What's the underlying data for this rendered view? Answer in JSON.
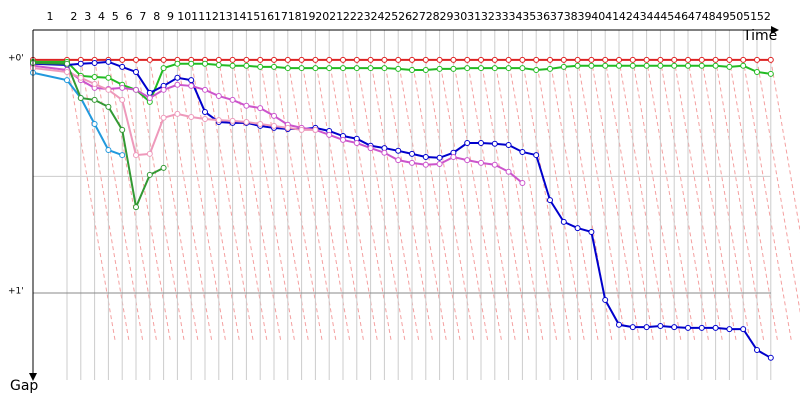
{
  "chart_data": {
    "type": "lap-gap",
    "x_label": "Time",
    "y_label": "Gap",
    "xticks": [
      1,
      2,
      3,
      4,
      5,
      6,
      7,
      8,
      9,
      10,
      11,
      12,
      13,
      14,
      15,
      16,
      17,
      18,
      19,
      20,
      21,
      22,
      23,
      24,
      25,
      26,
      27,
      28,
      29,
      30,
      31,
      32,
      33,
      34,
      35,
      36,
      37,
      38,
      39,
      40,
      41,
      42,
      43,
      44,
      45,
      46,
      47,
      48,
      49,
      50,
      51,
      52
    ],
    "ylim": [
      -7.7,
      83.7
    ],
    "yticks": [
      {
        "value": 0,
        "label": "+0'"
      },
      {
        "value": 60,
        "label": "+1'"
      }
    ],
    "minor_yticks": [
      30
    ],
    "series": [
      {
        "color": "#dd2222",
        "values": [
          0,
          0,
          0,
          0,
          0,
          0,
          0,
          0,
          0,
          0,
          0,
          0,
          0,
          0,
          0,
          0,
          0,
          0,
          0,
          0,
          0,
          0,
          0,
          0,
          0,
          0,
          0,
          0,
          0,
          0,
          0,
          0,
          0,
          0,
          0,
          0,
          0,
          0,
          0,
          0,
          0,
          0,
          0,
          0,
          0,
          0,
          0,
          0,
          0,
          0,
          0,
          0,
          0
        ]
      },
      {
        "color": "#22bb22",
        "values": [
          0.5,
          0.5,
          4.1,
          4.4,
          4.6,
          6.4,
          7.7,
          10.8,
          2.1,
          1.0,
          1.0,
          1.0,
          1.3,
          1.5,
          1.5,
          1.8,
          1.8,
          2.1,
          2.1,
          2.1,
          2.1,
          2.1,
          2.1,
          2.1,
          2.1,
          2.3,
          2.6,
          2.6,
          2.3,
          2.3,
          2.1,
          2.1,
          2.1,
          2.1,
          2.1,
          2.6,
          2.3,
          1.8,
          1.5,
          1.5,
          1.5,
          1.5,
          1.5,
          1.5,
          1.5,
          1.5,
          1.5,
          1.5,
          1.5,
          1.8,
          1.5,
          3.1,
          3.6
        ]
      },
      {
        "color": "#0000cc",
        "values": [
          1.0,
          1.3,
          1.0,
          0.8,
          0.5,
          1.8,
          3.1,
          8.5,
          6.7,
          4.6,
          5.2,
          13.4,
          16.0,
          16.2,
          16.2,
          17.0,
          17.5,
          17.8,
          17.8,
          17.5,
          18.3,
          19.6,
          20.3,
          22.1,
          22.7,
          23.4,
          24.2,
          25.0,
          25.2,
          23.9,
          21.4,
          21.4,
          21.6,
          21.9,
          23.7,
          24.5,
          36.1,
          41.7,
          43.3,
          44.3,
          61.8,
          68.2,
          68.8,
          68.8,
          68.5,
          68.8,
          69.0,
          69.0,
          69.0,
          69.3,
          69.3,
          74.7,
          76.7
        ]
      },
      {
        "color": "#cc55cc",
        "values": [
          1.5,
          2.6,
          5.2,
          7.2,
          7.5,
          7.2,
          7.7,
          9.8,
          7.7,
          6.4,
          6.7,
          7.7,
          9.3,
          10.3,
          11.8,
          12.4,
          14.4,
          16.7,
          17.5,
          18.0,
          19.3,
          20.6,
          21.4,
          22.7,
          23.9,
          25.8,
          26.5,
          27.0,
          26.8,
          25.0,
          25.8,
          26.5,
          27.0,
          28.8,
          31.7
        ]
      },
      {
        "color": "#ee99bb",
        "values": [
          2.1,
          3.1,
          4.6,
          6.2,
          7.7,
          10.3,
          24.5,
          24.2,
          14.9,
          13.9,
          14.7,
          15.2,
          15.5,
          15.7,
          16.0,
          16.5,
          17.0,
          17.5,
          18.0,
          18.0
        ]
      },
      {
        "color": "#2299dd",
        "values": [
          3.3,
          5.2,
          9.8,
          16.5,
          23.2,
          24.5
        ]
      },
      {
        "color": "#339933",
        "values": [
          0.8,
          1.0,
          9.8,
          10.3,
          12.1,
          18.0,
          37.9,
          29.6,
          27.8
        ]
      }
    ]
  }
}
